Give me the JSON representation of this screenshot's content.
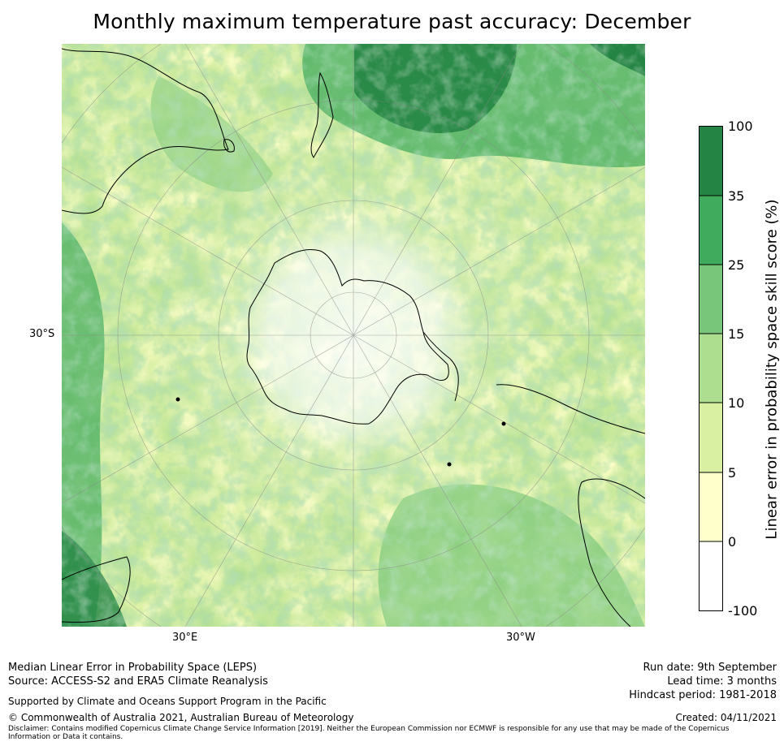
{
  "title": "Monthly maximum temperature past accuracy: December",
  "map": {
    "projection": "south-polar-stereographic",
    "lat_label": "30°S",
    "lon_labels": {
      "left": "30°E",
      "right": "30°W"
    },
    "colors": {
      "ocean_base": "#d9efa6",
      "land_outline": "#000000",
      "grid": "#888888"
    }
  },
  "colorbar": {
    "label": "Linear error in probability space skill score (%)",
    "ticks": [
      "100",
      "35",
      "25",
      "15",
      "10",
      "5",
      "0",
      "-100"
    ],
    "bins": [
      {
        "range": "35 to 100",
        "color": "#238443"
      },
      {
        "range": "25 to 35",
        "color": "#41ab5d"
      },
      {
        "range": "15 to 25",
        "color": "#78c679"
      },
      {
        "range": "10 to 15",
        "color": "#addd8e"
      },
      {
        "range": "5 to 10",
        "color": "#d9f0a3"
      },
      {
        "range": "0 to 5",
        "color": "#ffffcc"
      },
      {
        "range": "-100 to 0",
        "color": "#ffffff"
      }
    ]
  },
  "footer": {
    "left_line1": "Median Linear Error in Probability Space (LEPS)",
    "left_line2": "Source: ACCESS-S2 and ERA5 Climate Reanalysis",
    "supported": "Supported by Climate and Oceans Support Program in the Pacific",
    "copyright": "© Commonwealth of Australia 2021, Australian Bureau of Meteorology",
    "disclaimer": "Disclaimer: Contains modified Copernicus Climate Change Service Information [2019]. Neither the European Commission nor ECMWF is responsible for any use that may be made of the Copernicus Information or Data it contains.",
    "run_date": "Run date: 9th September",
    "lead_time": "Lead time: 3 months",
    "hindcast": "Hindcast period: 1981-2018",
    "created": "Created: 04/11/2021"
  }
}
